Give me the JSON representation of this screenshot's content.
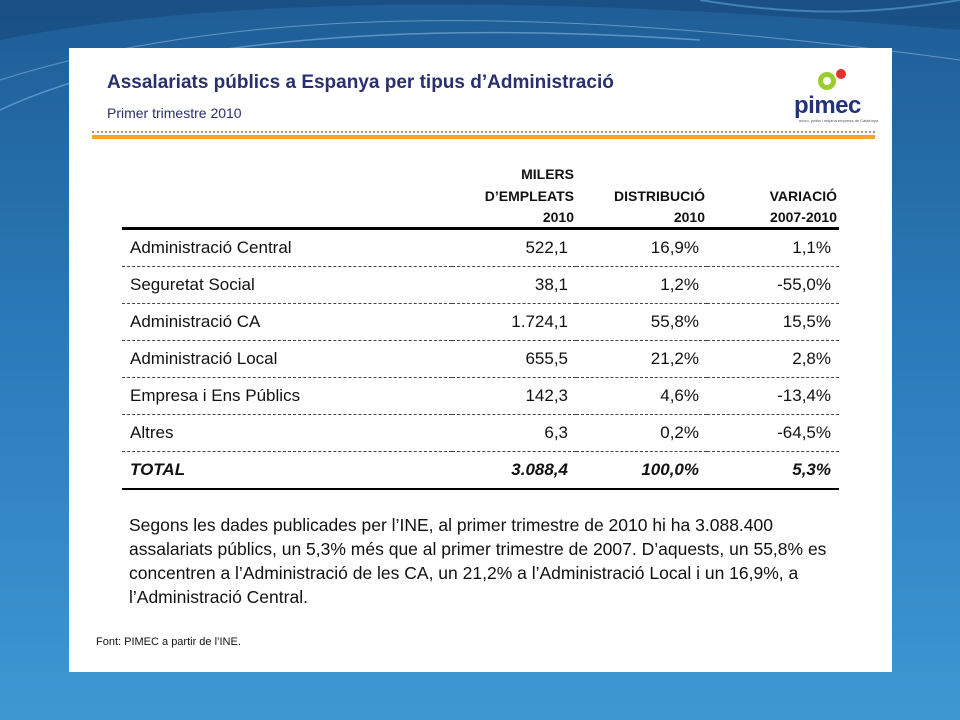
{
  "header": {
    "title": "Assalariats públics a Espanya per tipus d’Administració",
    "subtitle": "Primer trimestre 2010",
    "logo_text": "pimec",
    "logo_tagline": "micro, petita i mitjana empresa de Catalunya"
  },
  "table": {
    "headers": {
      "col2_line1": "MILERS",
      "col2_line2": "D’EMPLEATS",
      "col3": "DISTRIBUCIÓ",
      "col4": "VARIACIÓ",
      "year2": "2010",
      "year3": "2010",
      "year4": "2007-2010"
    },
    "rows": [
      {
        "label": "Administració Central",
        "employees": "522,1",
        "distribution": "16,9%",
        "variation": "1,1%"
      },
      {
        "label": "Seguretat Social",
        "employees": "38,1",
        "distribution": "1,2%",
        "variation": "-55,0%"
      },
      {
        "label": "Administració CA",
        "employees": "1.724,1",
        "distribution": "55,8%",
        "variation": "15,5%"
      },
      {
        "label": "Administració Local",
        "employees": "655,5",
        "distribution": "21,2%",
        "variation": "2,8%"
      },
      {
        "label": "Empresa i Ens Públics",
        "employees": "142,3",
        "distribution": "4,6%",
        "variation": "-13,4%"
      },
      {
        "label": "Altres",
        "employees": "6,3",
        "distribution": "0,2%",
        "variation": "-64,5%"
      }
    ],
    "total": {
      "label": "TOTAL",
      "employees": "3.088,4",
      "distribution": "100,0%",
      "variation": "5,3%"
    }
  },
  "paragraph": "Segons les dades publicades per l’INE, al primer trimestre de 2010 hi ha 3.088.400 assalariats públics, un 5,3% més que al primer trimestre de 2007. D’aquests, un 55,8% es concentren a l’Administració de les CA, un 21,2% a l’Administració Local i un 16,9%, a l’Administració Central.",
  "source": "Font: PIMEC a partir de l’INE.",
  "colors": {
    "background": "#2a79b8",
    "title": "#2a2f6e",
    "accent": "#f5a623",
    "logo_green": "#9ccc2c",
    "logo_red": "#e4312b"
  }
}
